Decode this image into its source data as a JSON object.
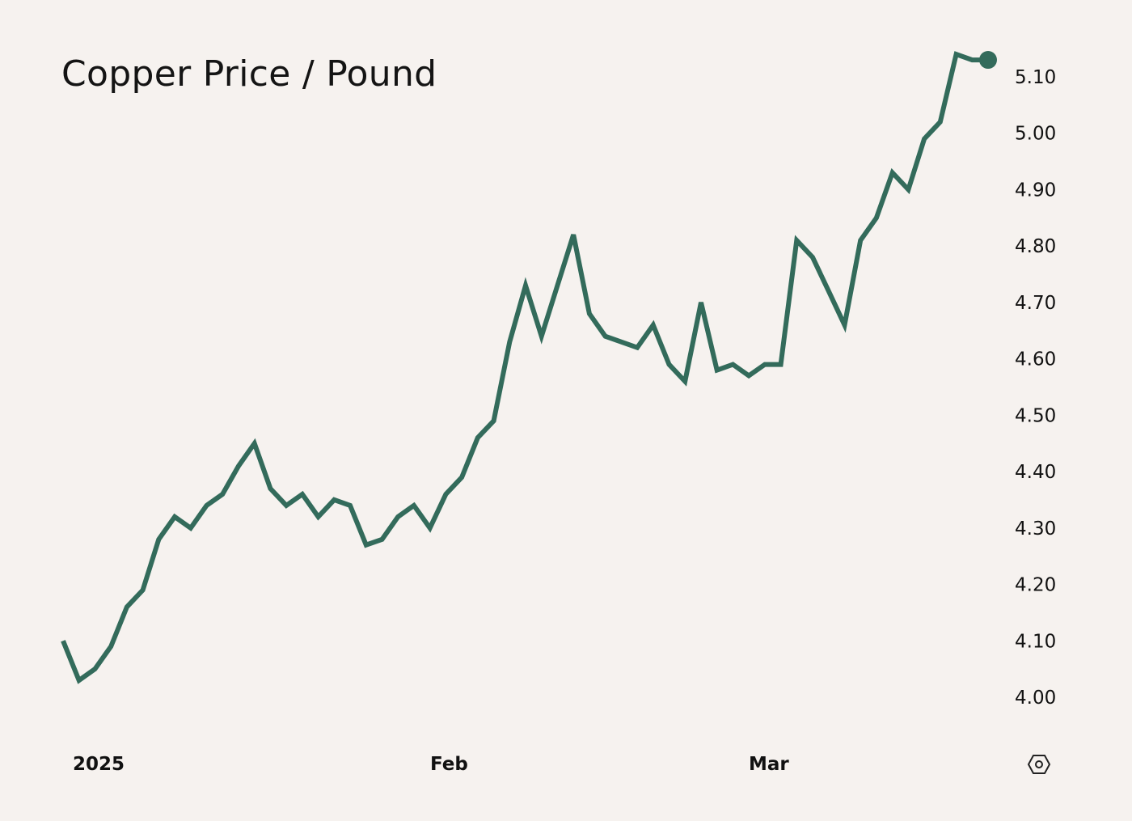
{
  "title": "Copper Price / Pound",
  "colors": {
    "background": "#f6f2ef",
    "line": "#336b5b",
    "text": "#111111"
  },
  "icons": {
    "settings": "settings-hexagon-icon"
  },
  "chart_data": {
    "type": "line",
    "title": "Copper Price / Pound",
    "xlabel": "",
    "ylabel": "",
    "ylim": [
      4.0,
      5.15
    ],
    "y_axis_position": "right",
    "y_ticks": [
      "4.00",
      "4.10",
      "4.20",
      "4.30",
      "4.40",
      "4.50",
      "4.60",
      "4.70",
      "4.80",
      "4.90",
      "5.00",
      "5.10"
    ],
    "x_ticks": [
      {
        "label": "2025",
        "index": 2
      },
      {
        "label": "Feb",
        "index": 24
      },
      {
        "label": "Mar",
        "index": 44
      }
    ],
    "grid": false,
    "legend": null,
    "end_marker": true,
    "series": [
      {
        "name": "Copper Price / Pound",
        "values": [
          4.1,
          4.03,
          4.05,
          4.09,
          4.16,
          4.19,
          4.28,
          4.32,
          4.3,
          4.34,
          4.36,
          4.41,
          4.45,
          4.37,
          4.34,
          4.36,
          4.32,
          4.35,
          4.34,
          4.27,
          4.28,
          4.32,
          4.34,
          4.3,
          4.36,
          4.39,
          4.46,
          4.49,
          4.63,
          4.73,
          4.64,
          4.73,
          4.82,
          4.68,
          4.64,
          4.63,
          4.62,
          4.66,
          4.59,
          4.56,
          4.7,
          4.58,
          4.59,
          4.57,
          4.59,
          4.59,
          4.81,
          4.78,
          4.72,
          4.66,
          4.81,
          4.85,
          4.93,
          4.9,
          4.99,
          5.02,
          5.14,
          5.13,
          5.13
        ]
      }
    ]
  }
}
